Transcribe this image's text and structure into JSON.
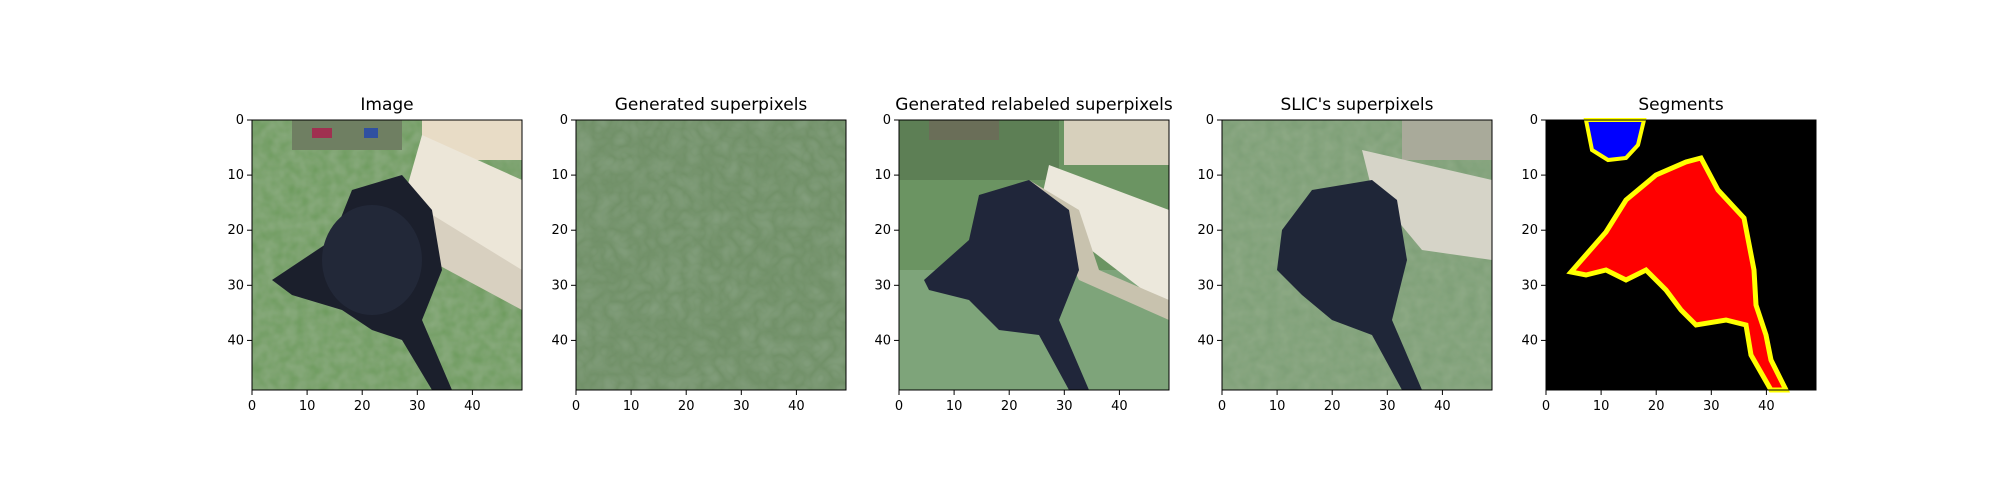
{
  "chart_data": {
    "type": "image-grid",
    "panels": [
      {
        "title": "Image",
        "kind": "image",
        "xlim": [
          0,
          49
        ],
        "ylim": [
          49,
          0
        ],
        "xticks": [
          0,
          10,
          20,
          30,
          40
        ],
        "yticks": [
          0,
          10,
          20,
          30,
          40
        ]
      },
      {
        "title": "Generated superpixels",
        "kind": "image",
        "xlim": [
          0,
          49
        ],
        "ylim": [
          49,
          0
        ],
        "xticks": [
          0,
          10,
          20,
          30,
          40
        ],
        "yticks": [
          0,
          10,
          20,
          30,
          40
        ]
      },
      {
        "title": "Generated relabeled superpixels",
        "kind": "image",
        "xlim": [
          0,
          49
        ],
        "ylim": [
          49,
          0
        ],
        "xticks": [
          0,
          10,
          20,
          30,
          40
        ],
        "yticks": [
          0,
          10,
          20,
          30,
          40
        ]
      },
      {
        "title": "SLIC's superpixels",
        "kind": "image",
        "xlim": [
          0,
          49
        ],
        "ylim": [
          49,
          0
        ],
        "xticks": [
          0,
          10,
          20,
          30,
          40
        ],
        "yticks": [
          0,
          10,
          20,
          30,
          40
        ]
      },
      {
        "title": "Segments",
        "kind": "segmentation",
        "xlim": [
          0,
          49
        ],
        "ylim": [
          49,
          0
        ],
        "xticks": [
          0,
          10,
          20,
          30,
          40
        ],
        "yticks": [
          0,
          10,
          20,
          30,
          40
        ]
      }
    ],
    "grid": false,
    "legend": "none"
  },
  "colors": {
    "background": "#000000",
    "segment_red": "#ff0000",
    "segment_blue": "#0000ff",
    "segment_boundary": "#ffff00",
    "grass": "#5d8b4f",
    "dog": "#1c2030",
    "deck": "#e6dcc8"
  }
}
